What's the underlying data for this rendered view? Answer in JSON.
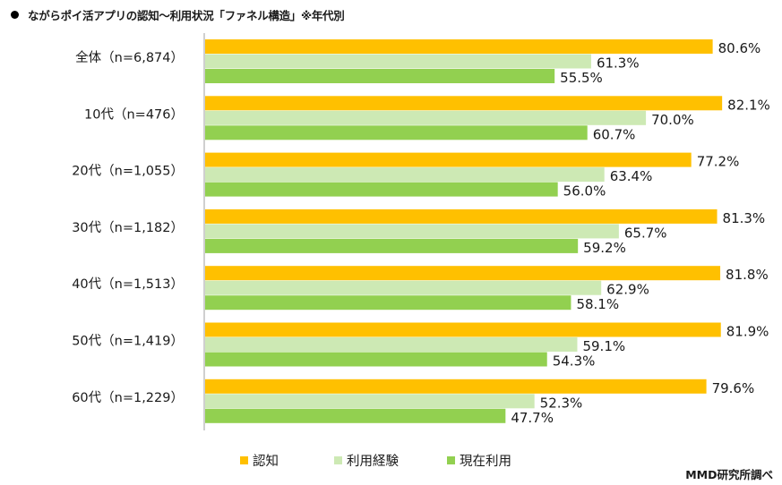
{
  "title": "ながらポイ活アプリの認知～利用状況「ファネル構造」※年代別",
  "source": "MMD研究所調べ",
  "colors": {
    "認知": "#FFC000",
    "利用経験": "#CDE9B4",
    "現在利用": "#92D050"
  },
  "legend": [
    {
      "label": "認知",
      "color": "#FFC000"
    },
    {
      "label": "利用経験",
      "color": "#CDE9B4"
    },
    {
      "label": "現在利用",
      "color": "#92D050"
    }
  ],
  "chart_data": {
    "type": "bar",
    "orientation": "horizontal",
    "title": "ながらポイ活アプリの認知～利用状況「ファネル構造」※年代別",
    "categories": [
      "全体（n=6,874）",
      "10代（n=476）",
      "20代（n=1,055）",
      "30代（n=1,182）",
      "40代（n=1,513）",
      "50代（n=1,419）",
      "60代（n=1,229）"
    ],
    "series": [
      {
        "name": "認知",
        "color": "#FFC000",
        "values": [
          80.6,
          82.1,
          77.2,
          81.3,
          81.8,
          81.9,
          79.6
        ]
      },
      {
        "name": "利用経験",
        "color": "#CDE9B4",
        "values": [
          61.3,
          70.0,
          63.4,
          65.7,
          62.9,
          59.1,
          52.3
        ]
      },
      {
        "name": "現在利用",
        "color": "#92D050",
        "values": [
          55.5,
          60.7,
          56.0,
          59.2,
          58.1,
          54.3,
          47.7
        ]
      }
    ],
    "value_suffix": "%",
    "xlim": [
      0,
      100
    ],
    "grid": false,
    "legend_position": "bottom",
    "xlabel": "",
    "ylabel": ""
  }
}
